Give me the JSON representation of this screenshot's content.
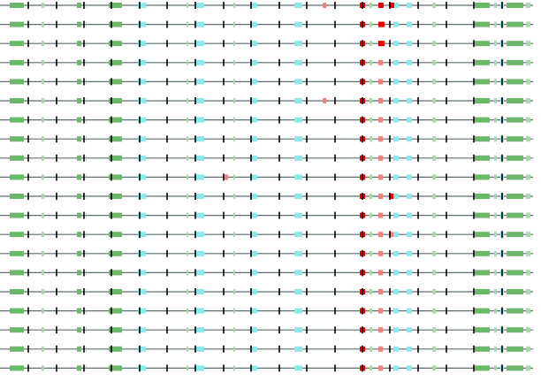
{
  "diagram": {
    "kind": "sequence-alignment-tracks",
    "track_count": 20,
    "colors": {
      "backbone": "#5f6f6f",
      "tick": "#000000",
      "green_strong": "#6bb86b",
      "green_light": "#a9d8a9",
      "cyan": "#8ee8e8",
      "red_strong": "#e40000",
      "red_light": "#f08080"
    },
    "tick_positions": [
      32,
      64,
      95,
      126,
      158,
      189,
      221,
      253,
      284,
      316,
      347,
      379,
      410,
      441,
      473,
      505,
      536,
      568
    ],
    "base_features": [
      {
        "kind": "green_strong",
        "start": 11,
        "end": 27
      },
      {
        "kind": "green_light",
        "start": 47,
        "end": 50
      },
      {
        "kind": "green_strong",
        "start": 87,
        "end": 92
      },
      {
        "kind": "green_light",
        "start": 97,
        "end": 98
      },
      {
        "kind": "green_strong",
        "start": 123,
        "end": 138
      },
      {
        "kind": "cyan",
        "start": 156,
        "end": 165
      },
      {
        "kind": "green_light",
        "start": 211,
        "end": 213
      },
      {
        "kind": "cyan",
        "start": 221,
        "end": 231
      },
      {
        "kind": "green_light",
        "start": 264,
        "end": 266
      },
      {
        "kind": "cyan",
        "start": 283,
        "end": 291
      },
      {
        "kind": "cyan",
        "start": 333,
        "end": 342
      },
      {
        "kind": "red_strong",
        "start": 407,
        "end": 413
      },
      {
        "kind": "green_light",
        "start": 418,
        "end": 421
      },
      {
        "kind": "red_light",
        "start": 428,
        "end": 433
      },
      {
        "kind": "cyan",
        "start": 445,
        "end": 451
      },
      {
        "kind": "cyan",
        "start": 460,
        "end": 466
      },
      {
        "kind": "green_light",
        "start": 489,
        "end": 493
      },
      {
        "kind": "green_strong",
        "start": 537,
        "end": 554
      },
      {
        "kind": "green_light",
        "start": 559,
        "end": 562
      },
      {
        "kind": "cyan",
        "start": 566,
        "end": 570
      },
      {
        "kind": "green_strong",
        "start": 573,
        "end": 592
      },
      {
        "kind": "green_light",
        "start": 595,
        "end": 600
      }
    ],
    "extra_features": [
      {
        "track": 0,
        "kind": "red_light",
        "start": 365,
        "end": 369
      },
      {
        "track": 0,
        "kind": "red_strong",
        "start": 428,
        "end": 434
      },
      {
        "track": 0,
        "kind": "red_strong",
        "start": 440,
        "end": 446
      },
      {
        "track": 1,
        "kind": "red_strong",
        "start": 428,
        "end": 435
      },
      {
        "track": 2,
        "kind": "red_strong",
        "start": 428,
        "end": 435
      },
      {
        "track": 5,
        "kind": "red_light",
        "start": 365,
        "end": 369
      },
      {
        "track": 9,
        "kind": "red_light",
        "start": 254,
        "end": 258
      },
      {
        "track": 10,
        "kind": "red_strong",
        "start": 440,
        "end": 445
      },
      {
        "track": 12,
        "kind": "red_light",
        "start": 440,
        "end": 445
      }
    ]
  }
}
